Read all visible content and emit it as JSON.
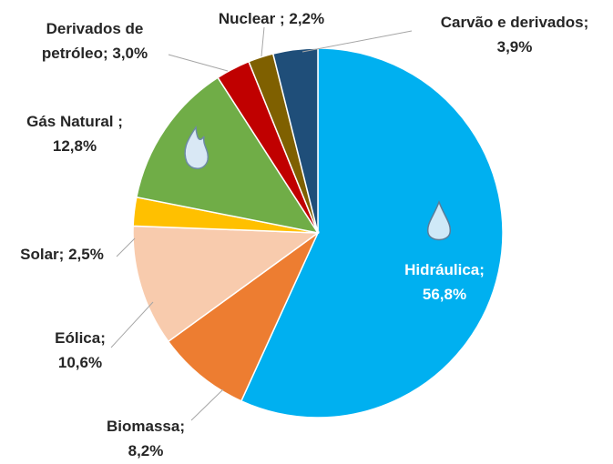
{
  "chart_data": {
    "type": "pie",
    "categories": [
      "Hidráulica;",
      "Biomassa;",
      "Eólica;",
      "Solar;",
      "Gás Natural ;",
      "Derivados de petróleo;",
      "Nuclear ;",
      "Carvão e derivados;"
    ],
    "values": [
      56.8,
      8.2,
      10.6,
      2.5,
      12.8,
      3.0,
      2.2,
      3.9
    ],
    "value_labels": [
      "56,8%",
      "8,2%",
      "10,6%",
      "2,5%",
      "12,8%",
      "3,0%",
      "2,2%",
      "3,9%"
    ],
    "colors": [
      "#00b0f0",
      "#ed7d31",
      "#f8cbad",
      "#ffc000",
      "#70ad47",
      "#c00000",
      "#7f6000",
      "#1f4e79"
    ]
  }
}
